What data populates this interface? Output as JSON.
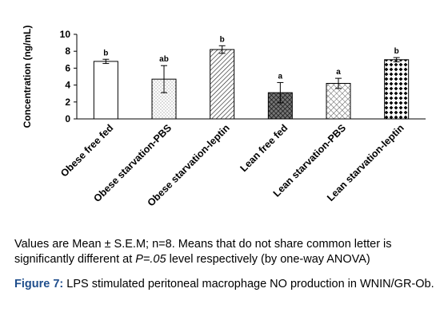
{
  "chart_data": {
    "type": "bar",
    "categories": [
      "Obese free fed",
      "Obese starvation-PBS",
      "Obese starvation-leptin",
      "Lean free fed",
      "Lean starvation-PBS",
      "Lean starvation-leptin"
    ],
    "values": [
      6.8,
      4.7,
      8.2,
      3.1,
      4.2,
      7.0
    ],
    "errors": [
      0.25,
      1.6,
      0.45,
      1.2,
      0.6,
      0.25
    ],
    "significance_letters": [
      "b",
      "ab",
      "b",
      "a",
      "a",
      "b"
    ],
    "bar_patterns": [
      "white",
      "dots",
      "diagonal",
      "crosshatch-dark",
      "crosshatch-light",
      "diamonds"
    ],
    "ylabel": "Concentration (ng/mL)",
    "ylim": [
      0,
      10
    ],
    "yticks": [
      "0",
      "2",
      "4",
      "6",
      "8",
      "10"
    ],
    "grid": false
  },
  "notes": {
    "text_before": "Values are Mean ± S.E.M; n=8. Means that do not share common letter is significantly different at ",
    "p_value": "P=.05",
    "text_after": " level respectively (by one-way ANOVA)"
  },
  "caption": {
    "label": "Figure 7:",
    "text": " LPS stimulated peritoneal macrophage NO production in WNIN/GR-Ob."
  }
}
